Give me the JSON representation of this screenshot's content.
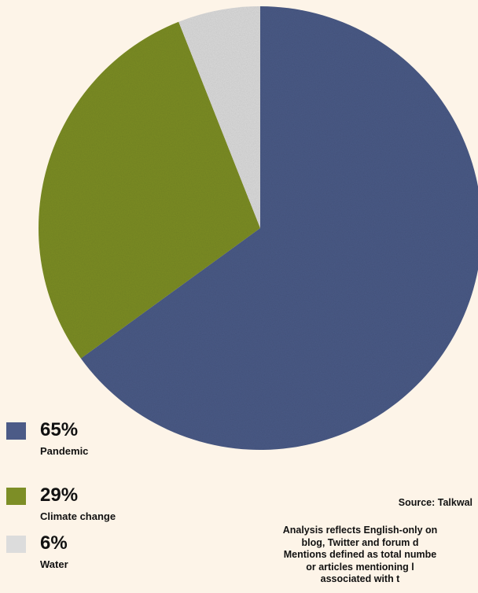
{
  "colors": {
    "background": "#fdf4e8",
    "pandemic": "#4c5b87",
    "climate": "#7d8e26",
    "water": "#dcdcdc"
  },
  "chart_data": {
    "type": "pie",
    "title": "",
    "categories": [
      "Pandemic",
      "Climate change",
      "Water"
    ],
    "values": [
      65,
      29,
      6
    ],
    "labels": [
      "65%",
      "29%",
      "6%"
    ],
    "colors": [
      "#4c5b87",
      "#7d8e26",
      "#dcdcdc"
    ],
    "legend_placement": "left"
  },
  "source": "Source: Talkwal",
  "notes": [
    "Analysis reflects English-only on",
    "blog, Twitter and forum d",
    "Mentions defined as total numbe",
    "or articles mentioning l",
    "associated with t"
  ]
}
